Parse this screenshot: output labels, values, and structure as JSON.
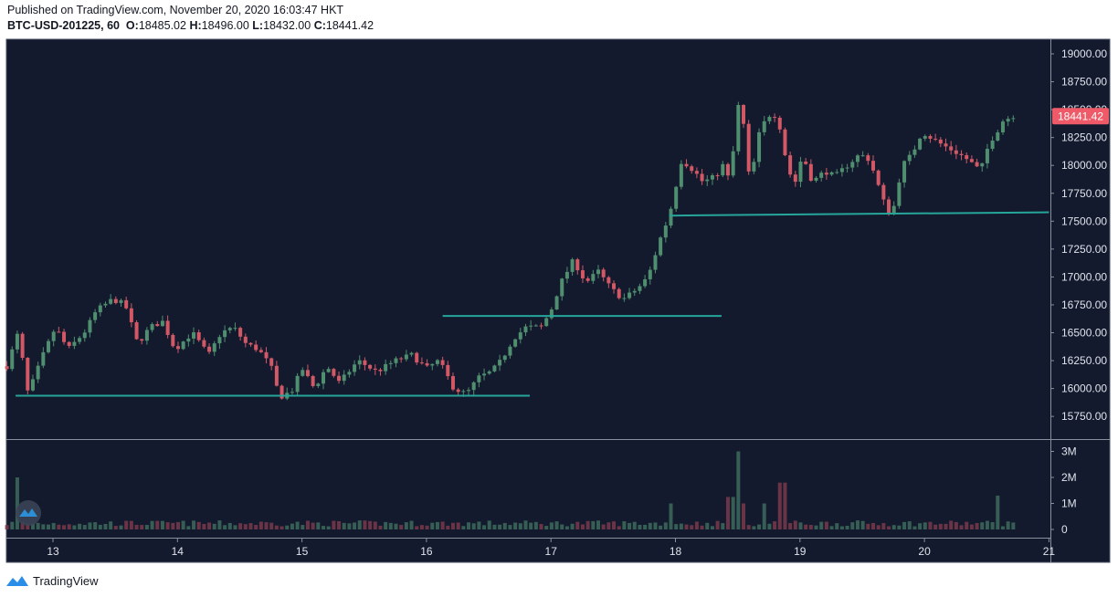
{
  "header": {
    "published": "Published on TradingView.com, November 20, 2020 16:03:47 HKT",
    "symbol": "BTC-USD-201225, 60",
    "o_label": "O:",
    "o_value": "18485.02",
    "h_label": "H:",
    "h_value": "18496.00",
    "l_label": "L:",
    "l_value": "18432.00",
    "c_label": "C:",
    "c_value": "18441.42"
  },
  "footer": {
    "brand": "TradingView"
  },
  "colors": {
    "background": "#131a2e",
    "up": "#4f8e6e",
    "down": "#d25865",
    "support_line": "#26a69a",
    "price_tag": "#ee5a67"
  },
  "chart_data": {
    "type": "candlestick",
    "x_tick_labels": [
      "13",
      "14",
      "15",
      "16",
      "17",
      "18",
      "19",
      "20",
      "21"
    ],
    "y_tick_labels": [
      "19000.00",
      "18750.00",
      "18500.00",
      "18250.00",
      "18000.00",
      "17750.00",
      "17500.00",
      "17250.00",
      "17000.00",
      "16750.00",
      "16500.00",
      "16250.00",
      "16000.00",
      "15750.00"
    ],
    "ylim": [
      15600,
      19100
    ],
    "last_price_label": "18441.42",
    "volume_tick_labels": [
      "3M",
      "2M",
      "1M",
      "0"
    ],
    "volume_ylim": [
      0,
      3000000
    ],
    "support_lines": [
      {
        "x_start": 12.7,
        "x_end": 16.83,
        "y_start": 15935,
        "y_end": 15935
      },
      {
        "x_start": 16.13,
        "x_end": 18.37,
        "y_start": 16650,
        "y_end": 16650
      },
      {
        "x_start": 17.95,
        "x_end": 21.0,
        "y_start": 17550,
        "y_end": 17580
      }
    ],
    "price_anchors": [
      [
        12.63,
        16200
      ],
      [
        12.72,
        16500
      ],
      [
        12.8,
        15950
      ],
      [
        12.92,
        16300
      ],
      [
        13.02,
        16550
      ],
      [
        13.12,
        16350
      ],
      [
        13.25,
        16500
      ],
      [
        13.35,
        16700
      ],
      [
        13.48,
        16800
      ],
      [
        13.58,
        16750
      ],
      [
        13.68,
        16400
      ],
      [
        13.78,
        16550
      ],
      [
        13.88,
        16600
      ],
      [
        13.98,
        16350
      ],
      [
        14.12,
        16500
      ],
      [
        14.25,
        16300
      ],
      [
        14.35,
        16500
      ],
      [
        14.45,
        16550
      ],
      [
        14.55,
        16400
      ],
      [
        14.65,
        16350
      ],
      [
        14.75,
        16200
      ],
      [
        14.82,
        15920
      ],
      [
        14.92,
        15980
      ],
      [
        15.0,
        16180
      ],
      [
        15.1,
        16000
      ],
      [
        15.2,
        16200
      ],
      [
        15.3,
        16050
      ],
      [
        15.45,
        16250
      ],
      [
        15.6,
        16150
      ],
      [
        15.75,
        16250
      ],
      [
        15.88,
        16300
      ],
      [
        16.0,
        16180
      ],
      [
        16.1,
        16250
      ],
      [
        16.22,
        16000
      ],
      [
        16.32,
        15950
      ],
      [
        16.42,
        16100
      ],
      [
        16.52,
        16150
      ],
      [
        16.6,
        16250
      ],
      [
        16.7,
        16450
      ],
      [
        16.8,
        16550
      ],
      [
        16.92,
        16550
      ],
      [
        17.0,
        16700
      ],
      [
        17.08,
        16950
      ],
      [
        17.18,
        17150
      ],
      [
        17.28,
        16950
      ],
      [
        17.38,
        17050
      ],
      [
        17.48,
        16900
      ],
      [
        17.58,
        16800
      ],
      [
        17.7,
        16900
      ],
      [
        17.78,
        17000
      ],
      [
        17.88,
        17350
      ],
      [
        17.95,
        17550
      ],
      [
        18.05,
        18050
      ],
      [
        18.15,
        17950
      ],
      [
        18.22,
        17850
      ],
      [
        18.32,
        17900
      ],
      [
        18.38,
        18000
      ],
      [
        18.44,
        17850
      ],
      [
        18.5,
        18550
      ],
      [
        18.55,
        18350
      ],
      [
        18.6,
        17800
      ],
      [
        18.66,
        18250
      ],
      [
        18.74,
        18450
      ],
      [
        18.82,
        18450
      ],
      [
        18.88,
        18100
      ],
      [
        18.95,
        17800
      ],
      [
        19.02,
        18100
      ],
      [
        19.1,
        17850
      ],
      [
        19.2,
        17950
      ],
      [
        19.28,
        17900
      ],
      [
        19.38,
        18000
      ],
      [
        19.48,
        18100
      ],
      [
        19.56,
        18050
      ],
      [
        19.62,
        17850
      ],
      [
        19.68,
        17650
      ],
      [
        19.74,
        17550
      ],
      [
        19.82,
        18000
      ],
      [
        19.9,
        18100
      ],
      [
        19.98,
        18300
      ],
      [
        20.05,
        18250
      ],
      [
        20.12,
        18200
      ],
      [
        20.2,
        18150
      ],
      [
        20.28,
        18100
      ],
      [
        20.35,
        18050
      ],
      [
        20.45,
        17950
      ],
      [
        20.52,
        18200
      ],
      [
        20.58,
        18300
      ],
      [
        20.63,
        18400
      ],
      [
        20.72,
        18450
      ]
    ],
    "volume_spikes": [
      {
        "x": 12.72,
        "value": 2000000
      },
      {
        "x": 18.5,
        "value": 3000000
      },
      {
        "x": 18.44,
        "value": 1250000
      },
      {
        "x": 18.86,
        "value": 1800000
      },
      {
        "x": 20.58,
        "value": 1300000
      },
      {
        "x": 17.98,
        "value": 1000000
      },
      {
        "x": 18.56,
        "value": 1000000
      },
      {
        "x": 18.7,
        "value": 1000000
      }
    ]
  }
}
